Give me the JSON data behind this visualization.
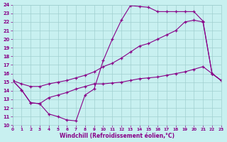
{
  "line1_x": [
    0,
    1,
    2,
    3,
    4,
    5,
    6,
    7,
    8,
    9,
    10,
    11,
    12,
    13,
    14,
    15,
    16,
    17,
    18,
    19,
    20,
    21,
    22,
    23
  ],
  "line1_y": [
    15.2,
    14.1,
    12.6,
    12.5,
    11.3,
    11.0,
    10.6,
    10.5,
    13.5,
    14.2,
    17.5,
    20.0,
    22.2,
    23.9,
    23.8,
    23.7,
    23.2,
    23.2,
    23.2,
    23.2,
    23.2,
    22.1,
    16.0,
    15.2
  ],
  "line2_x": [
    0,
    1,
    2,
    3,
    4,
    5,
    6,
    7,
    8,
    9,
    10,
    11,
    12,
    13,
    14,
    15,
    16,
    17,
    18,
    19,
    20,
    21,
    22,
    23
  ],
  "line2_y": [
    15.2,
    14.8,
    14.5,
    14.5,
    14.8,
    15.0,
    15.2,
    15.5,
    15.8,
    16.2,
    16.8,
    17.2,
    17.8,
    18.5,
    19.2,
    19.5,
    20.0,
    20.5,
    21.0,
    22.0,
    22.2,
    22.0,
    16.0,
    15.2
  ],
  "line3_x": [
    0,
    1,
    2,
    3,
    4,
    5,
    6,
    7,
    8,
    9,
    10,
    11,
    12,
    13,
    14,
    15,
    16,
    17,
    18,
    19,
    20,
    21,
    22,
    23
  ],
  "line3_y": [
    15.2,
    14.1,
    12.6,
    12.5,
    13.2,
    13.5,
    13.8,
    14.2,
    14.5,
    14.8,
    14.8,
    14.9,
    15.0,
    15.2,
    15.4,
    15.5,
    15.6,
    15.8,
    16.0,
    16.2,
    16.5,
    16.8,
    16.0,
    15.2
  ],
  "line_color": "#880088",
  "bg_color": "#c8f0f0",
  "grid_color": "#a0d0d0",
  "xlabel": "Windchill (Refroidissement éolien,°C)",
  "ylim": [
    10,
    24
  ],
  "xlim": [
    0,
    23
  ],
  "yticks": [
    10,
    11,
    12,
    13,
    14,
    15,
    16,
    17,
    18,
    19,
    20,
    21,
    22,
    23,
    24
  ],
  "xticks": [
    0,
    1,
    2,
    3,
    4,
    5,
    6,
    7,
    8,
    9,
    10,
    11,
    12,
    13,
    14,
    15,
    16,
    17,
    18,
    19,
    20,
    21,
    22,
    23
  ]
}
